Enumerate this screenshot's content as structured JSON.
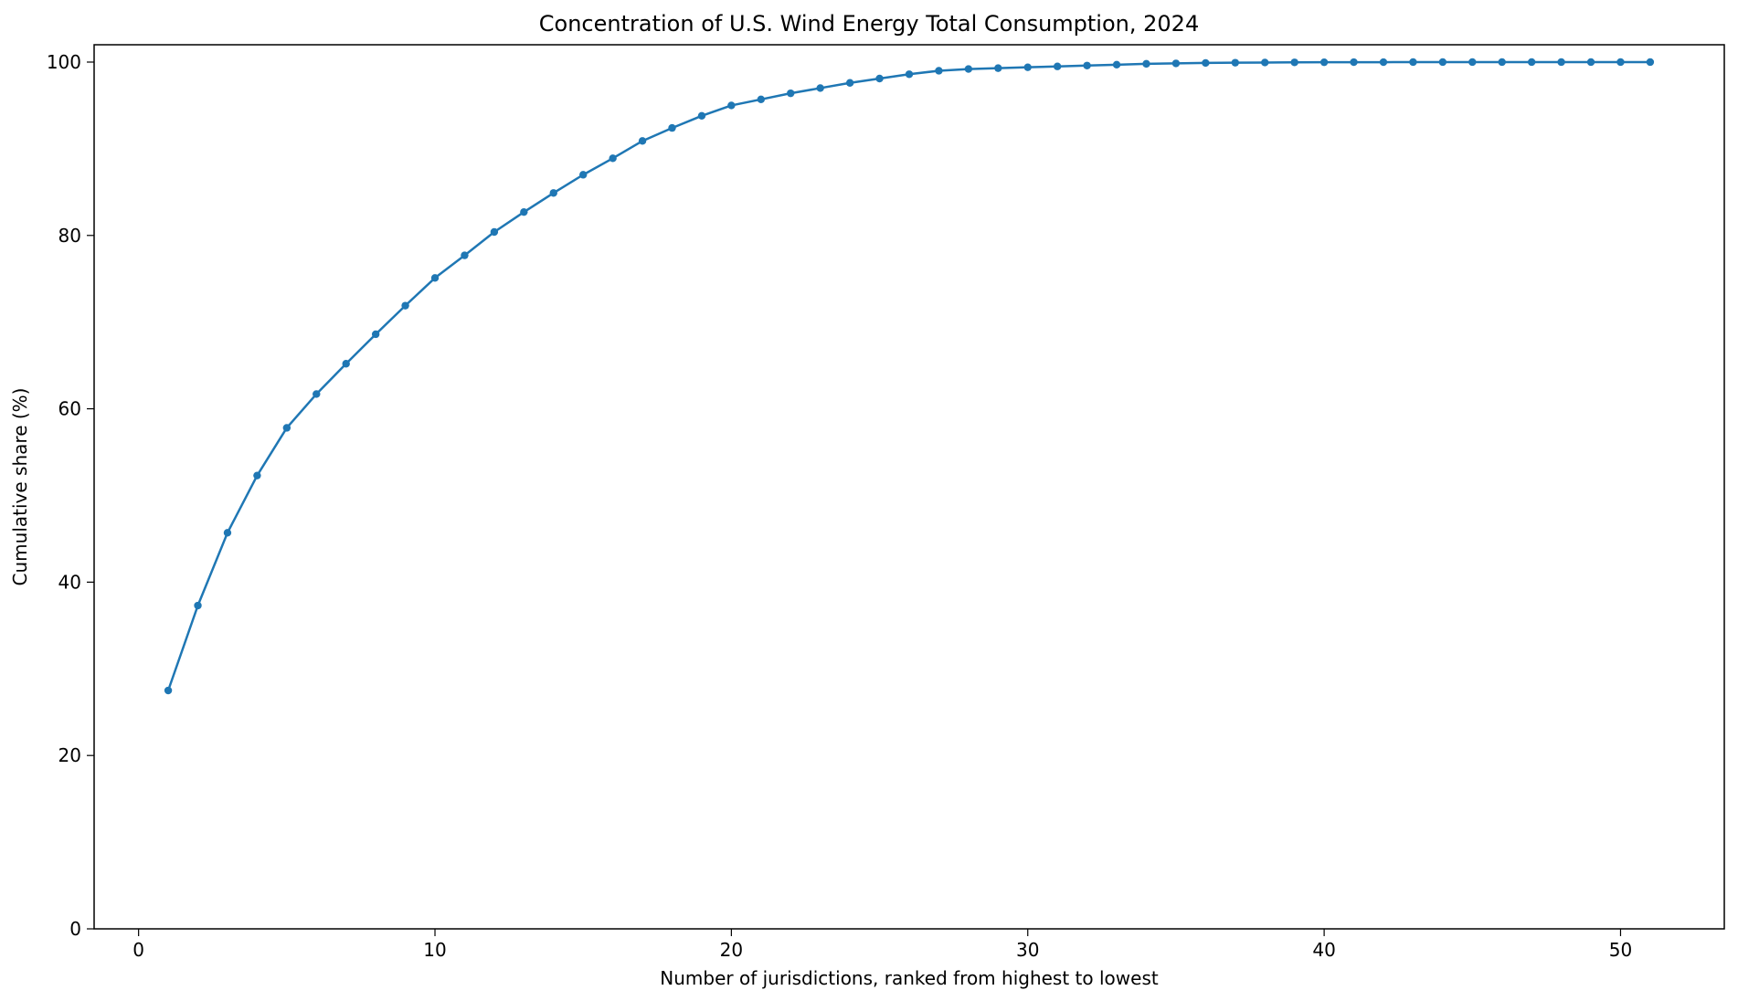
{
  "chart_data": {
    "type": "line",
    "title": "Concentration of U.S. Wind Energy Total Consumption, 2024",
    "xlabel": "Number of jurisdictions, ranked from highest to lowest",
    "ylabel": "Cumulative share (%)",
    "xlim": [
      -1.5,
      53.5
    ],
    "ylim": [
      0,
      102
    ],
    "xticks": [
      0,
      10,
      20,
      30,
      40,
      50
    ],
    "yticks": [
      0,
      20,
      40,
      60,
      80,
      100
    ],
    "grid": false,
    "legend": "none",
    "series": [
      {
        "color": "#1f77b4",
        "marker": "circle",
        "x": [
          1,
          2,
          3,
          4,
          5,
          6,
          7,
          8,
          9,
          10,
          11,
          12,
          13,
          14,
          15,
          16,
          17,
          18,
          19,
          20,
          21,
          22,
          23,
          24,
          25,
          26,
          27,
          28,
          29,
          30,
          31,
          32,
          33,
          34,
          35,
          36,
          37,
          38,
          39,
          40,
          41,
          42,
          43,
          44,
          45,
          46,
          47,
          48,
          49,
          50,
          51
        ],
        "values": [
          27.5,
          37.3,
          45.7,
          52.3,
          57.8,
          61.7,
          65.2,
          68.6,
          71.9,
          75.1,
          77.7,
          80.4,
          82.7,
          84.9,
          87.0,
          88.9,
          90.9,
          92.4,
          93.8,
          95.0,
          95.7,
          96.4,
          97.0,
          97.6,
          98.1,
          98.6,
          99.0,
          99.2,
          99.3,
          99.4,
          99.5,
          99.6,
          99.7,
          99.8,
          99.85,
          99.9,
          99.93,
          99.95,
          99.97,
          99.98,
          99.99,
          99.99,
          100.0,
          100.0,
          100.0,
          100.0,
          100.0,
          100.0,
          100.0,
          100.0,
          100.0
        ]
      }
    ]
  }
}
